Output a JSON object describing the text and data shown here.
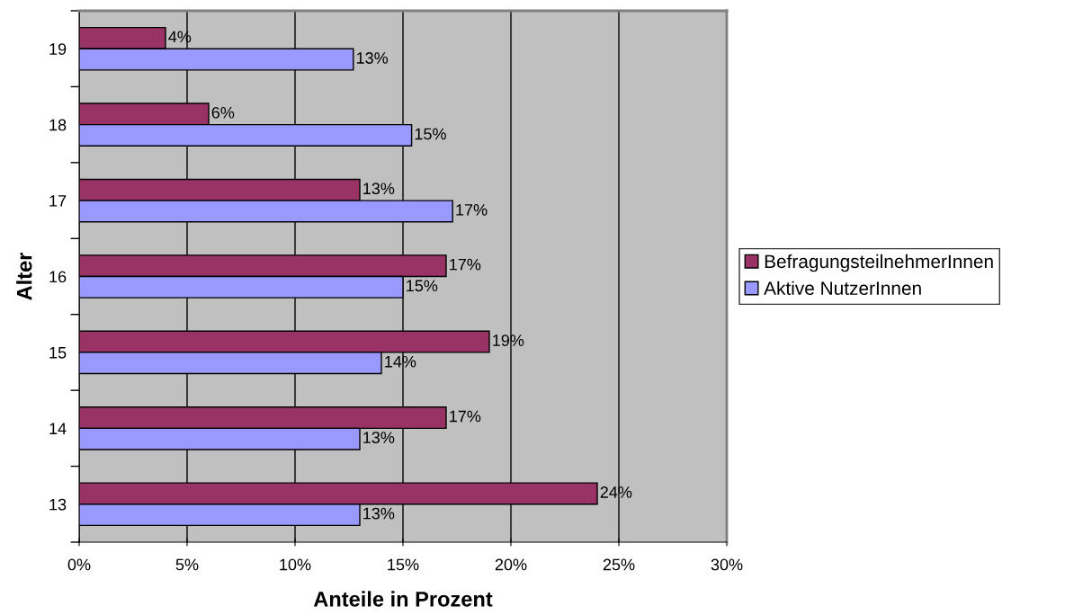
{
  "chart_data": {
    "type": "bar",
    "orientation": "horizontal",
    "xlabel": "Anteile in Prozent",
    "ylabel": "Alter",
    "categories": [
      "19",
      "18",
      "17",
      "16",
      "15",
      "14",
      "13"
    ],
    "series": [
      {
        "name": "BefragungsteilnehmerInnen",
        "color": "#993366",
        "values": [
          4,
          6,
          13,
          17,
          19,
          17,
          24
        ],
        "value_labels": [
          "4%",
          "6%",
          "13%",
          "17%",
          "19%",
          "17%",
          "24%"
        ]
      },
      {
        "name": "Aktive NutzerInnen",
        "color": "#9999ff",
        "values": [
          12.7,
          15.4,
          17.3,
          15,
          14,
          13,
          13
        ],
        "value_labels": [
          "13%",
          "15%",
          "17%",
          "15%",
          "14%",
          "13%",
          "13%"
        ]
      }
    ],
    "xlim": [
      0,
      30
    ],
    "xticks": [
      {
        "value": 0,
        "label": "0%"
      },
      {
        "value": 5,
        "label": "5%"
      },
      {
        "value": 10,
        "label": "10%"
      },
      {
        "value": 15,
        "label": "15%"
      },
      {
        "value": 20,
        "label": "20%"
      },
      {
        "value": 25,
        "label": "25%"
      },
      {
        "value": 30,
        "label": "30%"
      }
    ],
    "grid": "x",
    "legend": "right"
  }
}
